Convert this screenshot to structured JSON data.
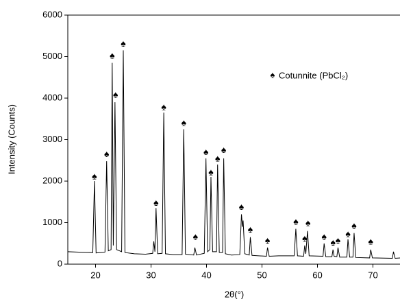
{
  "chart_data": {
    "type": "line",
    "x_label": "2θ(°)",
    "y_label": "Intensity (Counts)",
    "xlim": [
      15,
      75
    ],
    "ylim": [
      0,
      6000
    ],
    "xticks": [
      20,
      30,
      40,
      50,
      60,
      70
    ],
    "yticks": [
      0,
      1000,
      2000,
      3000,
      4000,
      5000,
      6000
    ],
    "series": [
      {
        "name": "Cotunnite (PbCl₂)",
        "color": "#000000",
        "x": [
          15,
          17,
          19.5,
          19.8,
          20.1,
          21.7,
          22.0,
          22.3,
          22.8,
          23.0,
          23.2,
          23.5,
          23.8,
          24.7,
          25.0,
          25.3,
          27,
          29,
          30.3,
          30.5,
          30.7,
          30.9,
          31.2,
          32.0,
          32.3,
          32.6,
          34,
          35.6,
          35.9,
          36.2,
          37.7,
          37.9,
          38.2,
          39.6,
          39.9,
          40.2,
          40.6,
          40.8,
          41.1,
          41.8,
          42.0,
          42.3,
          42.9,
          43.1,
          43.4,
          44.5,
          46.0,
          46.3,
          46.5,
          46.6,
          46.9,
          47.7,
          47.9,
          48.2,
          50.8,
          51.0,
          51.3,
          53,
          55.8,
          56.1,
          56.4,
          57.5,
          57.7,
          57.9,
          58.2,
          58.5,
          61.0,
          61.2,
          61.5,
          62.6,
          62.8,
          63.0,
          63.5,
          63.7,
          64.0,
          65.3,
          65.5,
          65.8,
          66.4,
          66.6,
          66.9,
          69.4,
          69.6,
          69.9,
          73.5,
          73.7,
          74.0,
          75
        ],
        "values": [
          300,
          290,
          280,
          2000,
          270,
          290,
          2480,
          320,
          350,
          4850,
          450,
          3900,
          350,
          300,
          5150,
          280,
          250,
          240,
          260,
          550,
          300,
          1350,
          250,
          260,
          3650,
          250,
          230,
          230,
          3250,
          240,
          220,
          400,
          220,
          260,
          2550,
          300,
          350,
          2100,
          300,
          300,
          2400,
          280,
          280,
          2550,
          250,
          220,
          230,
          1200,
          900,
          1050,
          250,
          220,
          650,
          210,
          190,
          400,
          190,
          200,
          200,
          850,
          200,
          190,
          450,
          250,
          800,
          200,
          190,
          500,
          180,
          180,
          350,
          190,
          180,
          400,
          170,
          170,
          600,
          170,
          170,
          750,
          160,
          150,
          350,
          150,
          140,
          300,
          140,
          150
        ]
      }
    ],
    "peak_markers": {
      "symbol": "♠",
      "x": [
        19.8,
        22.0,
        23.0,
        23.6,
        25.0,
        30.9,
        32.3,
        35.9,
        38.0,
        39.9,
        40.8,
        42.0,
        43.1,
        46.3,
        47.9,
        51.0,
        56.1,
        57.7,
        58.3,
        61.2,
        62.8,
        63.7,
        65.5,
        66.6,
        69.6
      ],
      "y": [
        2100,
        2640,
        5010,
        4070,
        5300,
        1470,
        3770,
        3390,
        645,
        2690,
        2200,
        2530,
        2740,
        1370,
        825,
        560,
        1010,
        610,
        975,
        645,
        510,
        560,
        710,
        910,
        530
      ]
    }
  }
}
